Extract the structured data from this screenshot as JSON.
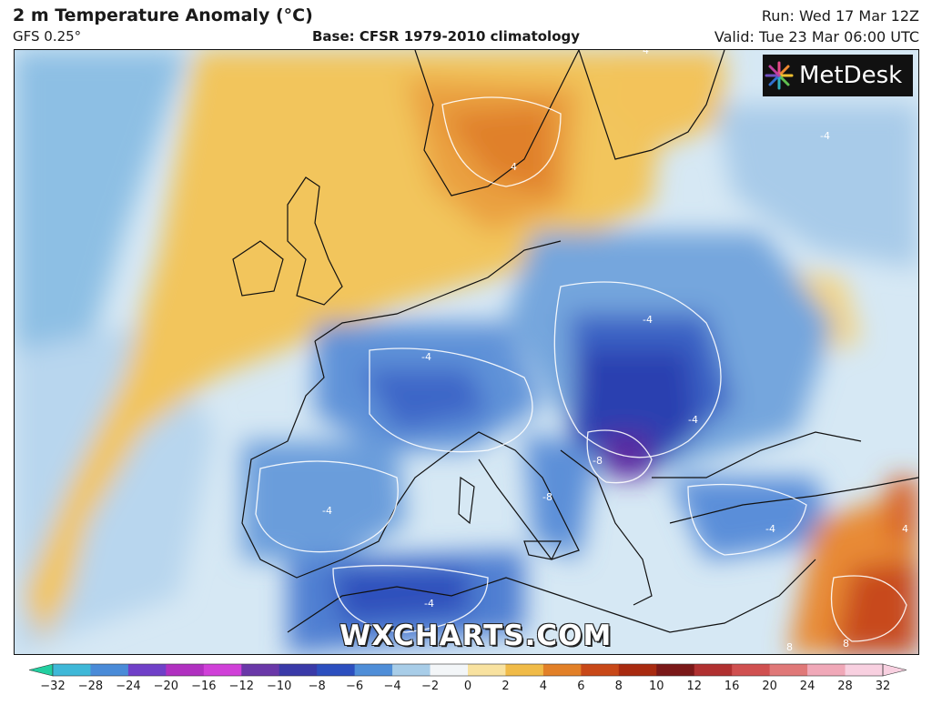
{
  "header": {
    "title": "2 m Temperature Anomaly (°C)",
    "model": "GFS 0.25°",
    "base": "Base: CFSR 1979-2010 climatology",
    "run": "Run: Wed 17 Mar 12Z",
    "valid": "Valid: Tue 23 Mar 06:00 UTC"
  },
  "logo": {
    "text": "MetDesk"
  },
  "watermark": "WXCHARTS.COM",
  "contour_labels": [
    "-4",
    "-4",
    "-4",
    "-4",
    "-4",
    "-4",
    "-4",
    "4",
    "4",
    "4",
    "-8",
    "-8",
    "8",
    "8"
  ],
  "colorbar": {
    "ticks": [
      "−32",
      "−28",
      "−24",
      "−20",
      "−16",
      "−12",
      "−10",
      "−8",
      "−6",
      "−4",
      "−2",
      "0",
      "2",
      "4",
      "6",
      "8",
      "10",
      "12",
      "16",
      "20",
      "24",
      "28",
      "32"
    ],
    "colors": [
      "#22cfa0",
      "#3fb8d8",
      "#4a8bd8",
      "#7040c8",
      "#b030c0",
      "#d040d8",
      "#6a38a8",
      "#3a3aa8",
      "#2c4fbf",
      "#4f8ed8",
      "#a8cde8",
      "#f3f6f8",
      "#f8e2a0",
      "#f0bb48",
      "#e28028",
      "#c84818",
      "#a82a10",
      "#7a1818",
      "#b03030",
      "#d05050",
      "#e07878",
      "#f0a8b8",
      "#f8d0e0"
    ]
  }
}
